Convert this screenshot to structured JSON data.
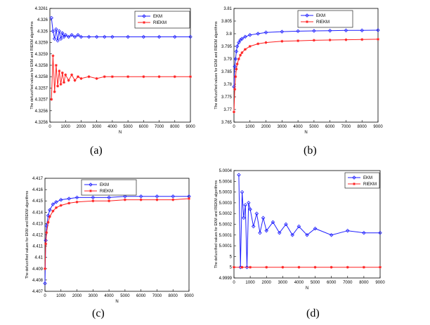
{
  "chart_data": [
    {
      "type": "line",
      "panel_label": "(a)",
      "xlabel": "N",
      "ylabel": "The defuzzified values for EKM and RIEKM algorithms",
      "xlim": [
        0,
        9000
      ],
      "ylim": [
        4.3255,
        4.3261
      ],
      "xticks": [
        "0",
        "1000",
        "2000",
        "3000",
        "4000",
        "5000",
        "6000",
        "7000",
        "8000",
        "9000"
      ],
      "yticks": [
        "4.3256",
        "4.3256",
        "4.3257",
        "4.3257",
        "4.3258",
        "4.3258",
        "4.3259",
        "4.3259",
        "4.326",
        "4.326",
        "4.3261"
      ],
      "legend_position": "top-right",
      "series": [
        {
          "name": "EKM",
          "color": "#1f1fff",
          "marker": "diamond",
          "x": [
            100,
            200,
            300,
            400,
            500,
            600,
            700,
            800,
            900,
            1000,
            1200,
            1400,
            1600,
            1800,
            2000,
            2500,
            3000,
            3500,
            4000,
            5000,
            6000,
            7000,
            8000,
            9000
          ],
          "y": [
            4.32605,
            4.32598,
            4.32594,
            4.32599,
            4.32593,
            4.32598,
            4.32594,
            4.32597,
            4.32595,
            4.32596,
            4.32595,
            4.32596,
            4.32595,
            4.32596,
            4.32595,
            4.32595,
            4.32595,
            4.32595,
            4.32595,
            4.32595,
            4.32595,
            4.32595,
            4.32595,
            4.32595
          ]
        },
        {
          "name": "RIEKM",
          "color": "#ff2020",
          "marker": "star",
          "x": [
            100,
            200,
            300,
            400,
            500,
            600,
            700,
            800,
            900,
            1000,
            1200,
            1400,
            1600,
            1800,
            2000,
            2500,
            3000,
            3500,
            4000,
            5000,
            6000,
            7000,
            8000,
            9000
          ],
          "y": [
            4.32562,
            4.32585,
            4.32566,
            4.3258,
            4.32569,
            4.32577,
            4.3257,
            4.32576,
            4.32571,
            4.32575,
            4.32572,
            4.32575,
            4.32572,
            4.32574,
            4.32573,
            4.32574,
            4.32573,
            4.32574,
            4.32574,
            4.32574,
            4.32574,
            4.32574,
            4.32574,
            4.32574
          ]
        }
      ]
    },
    {
      "type": "line",
      "panel_label": "(b)",
      "xlabel": "N",
      "ylabel": "The defuzzified values for EKM and RIEKM algorithms",
      "xlim": [
        0,
        9000
      ],
      "ylim": [
        3.765,
        3.81
      ],
      "xticks": [
        "0",
        "1000",
        "2000",
        "3000",
        "4000",
        "5000",
        "6000",
        "7000",
        "8000",
        "9000"
      ],
      "yticks": [
        "3.765",
        "3.77",
        "3.775",
        "3.78",
        "3.785",
        "3.79",
        "3.795",
        "3.8",
        "3.805",
        "3.81"
      ],
      "legend_position": "top-right",
      "series": [
        {
          "name": "EKM",
          "color": "#1f1fff",
          "marker": "diamond",
          "x": [
            0,
            50,
            100,
            150,
            200,
            300,
            400,
            500,
            700,
            1000,
            1500,
            2000,
            3000,
            4000,
            5000,
            6000,
            7000,
            8000,
            9000
          ],
          "y": [
            3.779,
            3.787,
            3.79,
            3.793,
            3.795,
            3.7965,
            3.7975,
            3.798,
            3.7988,
            3.7995,
            3.8,
            3.8005,
            3.8008,
            3.801,
            3.8011,
            3.8012,
            3.8013,
            3.8013,
            3.8014
          ]
        },
        {
          "name": "RIEKM",
          "color": "#ff2020",
          "marker": "star",
          "x": [
            0,
            50,
            100,
            150,
            200,
            300,
            400,
            500,
            700,
            1000,
            1500,
            2000,
            3000,
            4000,
            5000,
            6000,
            7000,
            8000,
            9000
          ],
          "y": [
            3.769,
            3.778,
            3.783,
            3.786,
            3.788,
            3.79,
            3.7915,
            3.7925,
            3.7938,
            3.795,
            3.796,
            3.7965,
            3.797,
            3.7972,
            3.7974,
            3.7975,
            3.7976,
            3.7977,
            3.7978
          ]
        }
      ]
    },
    {
      "type": "line",
      "panel_label": "(c)",
      "xlabel": "N",
      "ylabel": "The defuzzified values for EKM and RIEKM algorithms",
      "xlim": [
        0,
        9000
      ],
      "ylim": [
        4.407,
        4.417
      ],
      "xticks": [
        "0",
        "1000",
        "2000",
        "3000",
        "4000",
        "5000",
        "6000",
        "7000",
        "8000",
        "9000"
      ],
      "yticks": [
        "4.407",
        "4.408",
        "4.409",
        "4.41",
        "4.411",
        "4.412",
        "4.413",
        "4.414",
        "4.415",
        "4.416",
        "4.417"
      ],
      "legend_position": "top-right",
      "series": [
        {
          "name": "EKM",
          "color": "#1f1fff",
          "marker": "diamond",
          "x": [
            0,
            50,
            100,
            200,
            300,
            500,
            700,
            1000,
            1500,
            2000,
            3000,
            4000,
            5000,
            6000,
            7000,
            8000,
            9000
          ],
          "y": [
            4.4077,
            4.4115,
            4.4128,
            4.4137,
            4.4142,
            4.4147,
            4.4149,
            4.4151,
            4.4152,
            4.4153,
            4.4153,
            4.4153,
            4.4154,
            4.4154,
            4.4154,
            4.4154,
            4.4154
          ]
        },
        {
          "name": "RIEKM",
          "color": "#ff2020",
          "marker": "star",
          "x": [
            0,
            50,
            100,
            200,
            300,
            500,
            700,
            1000,
            1500,
            2000,
            3000,
            4000,
            5000,
            6000,
            7000,
            8000,
            9000
          ],
          "y": [
            4.409,
            4.4112,
            4.4122,
            4.4131,
            4.4136,
            4.4141,
            4.4144,
            4.4146,
            4.4148,
            4.4149,
            4.415,
            4.415,
            4.4151,
            4.4151,
            4.4151,
            4.4151,
            4.4152
          ]
        }
      ]
    },
    {
      "type": "line",
      "panel_label": "(d)",
      "xlabel": "N",
      "ylabel": "The defuzzified values for EKM and RIEKM algorithms",
      "xlim": [
        0,
        9000
      ],
      "ylim": [
        4.9999,
        5.0004
      ],
      "xticks": [
        "0",
        "1000",
        "2000",
        "3000",
        "4000",
        "5000",
        "6000",
        "7000",
        "8000",
        "9000"
      ],
      "yticks": [
        "4.9999",
        "5",
        "5",
        "5.0001",
        "5.0001",
        "5.0002",
        "5.0002",
        "5.0003",
        "5.0003",
        "5.0004",
        "5.0004"
      ],
      "legend_position": "top-right",
      "series": [
        {
          "name": "EKM",
          "color": "#1f1fff",
          "marker": "diamond",
          "x": [
            300,
            400,
            500,
            600,
            700,
            800,
            900,
            1000,
            1200,
            1400,
            1600,
            1800,
            2000,
            2400,
            2800,
            3200,
            3600,
            4000,
            4500,
            5000,
            6000,
            7000,
            8000,
            9000
          ],
          "y": [
            5.00038,
            4.99995,
            5.0003,
            5.00018,
            5.00024,
            4.99995,
            5.00025,
            5.00022,
            5.00014,
            5.0002,
            5.00011,
            5.00018,
            5.00012,
            5.00016,
            5.00011,
            5.00015,
            5.0001,
            5.00014,
            5.0001,
            5.00013,
            5.0001,
            5.00012,
            5.00011,
            5.00011
          ]
        },
        {
          "name": "RIEKM",
          "color": "#ff2020",
          "marker": "star",
          "x": [
            0,
            500,
            1000,
            2000,
            3000,
            4000,
            5000,
            6000,
            7000,
            8000,
            9000
          ],
          "y": [
            4.99995,
            4.99995,
            4.99995,
            4.99995,
            4.99995,
            4.99995,
            4.99995,
            4.99995,
            4.99995,
            4.99995,
            4.99995
          ]
        }
      ]
    }
  ]
}
